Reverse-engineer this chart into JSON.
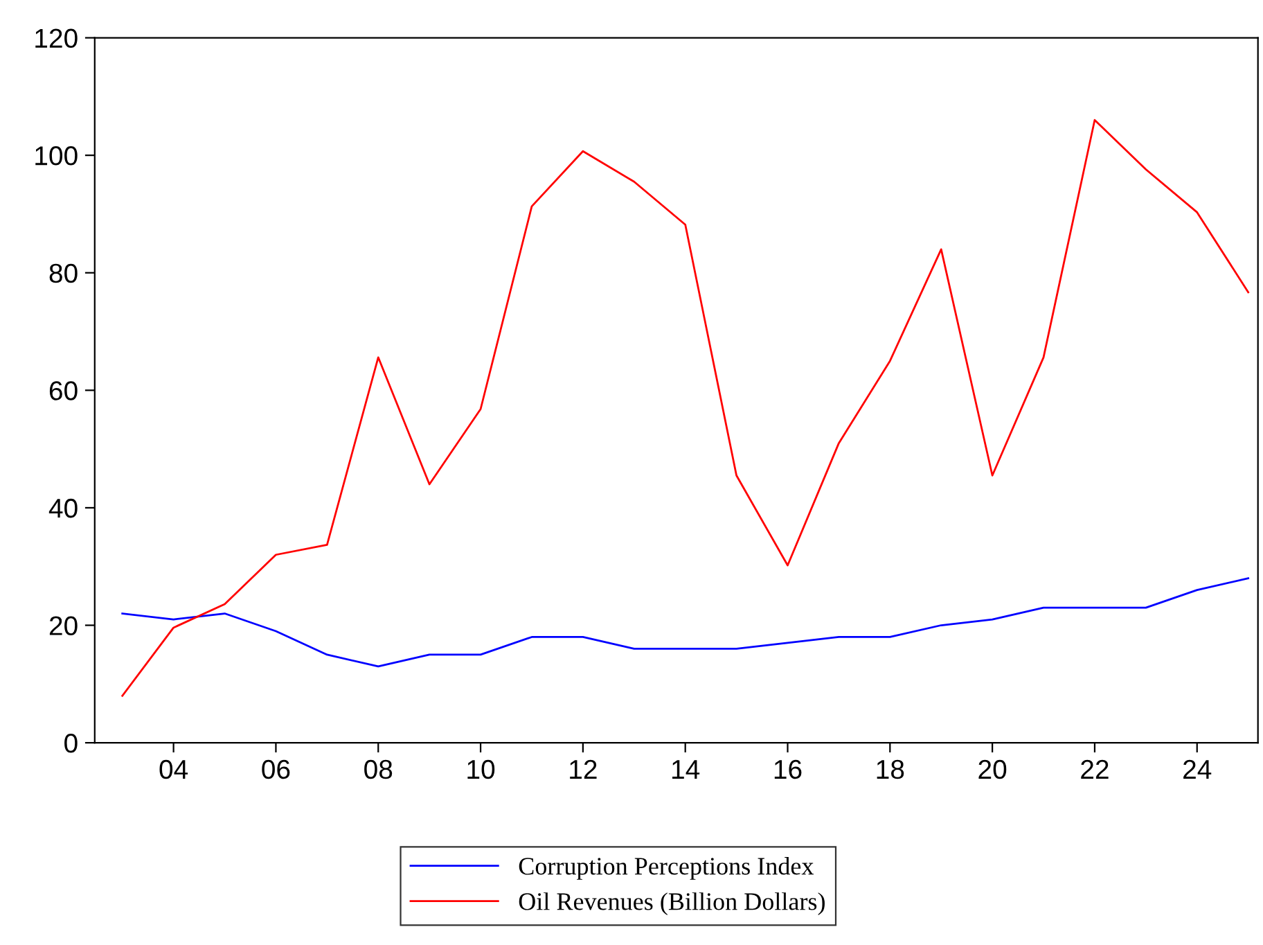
{
  "chart_data": {
    "type": "line",
    "x": [
      2003,
      2004,
      2005,
      2006,
      2007,
      2008,
      2009,
      2010,
      2011,
      2012,
      2013,
      2014,
      2015,
      2016,
      2017,
      2018,
      2019,
      2020,
      2021,
      2022,
      2023,
      2024,
      2025
    ],
    "series": [
      {
        "name": "Corruption Perceptions Index",
        "color": "#0000ff",
        "values": [
          22,
          21,
          22,
          19,
          15,
          13,
          15,
          15,
          18,
          18,
          16,
          16,
          16,
          17,
          18,
          18,
          20,
          21,
          23,
          23,
          23,
          26,
          28
        ]
      },
      {
        "name": "Oil Revenues (Billion Dollars)",
        "color": "#ff0000",
        "values": [
          8,
          19.6,
          23.6,
          32,
          33.7,
          65.6,
          44,
          56.8,
          91.3,
          100.7,
          95.5,
          88.2,
          45.5,
          30.2,
          51,
          65,
          84,
          45.5,
          65.6,
          106,
          97.6,
          90.3,
          76.7
        ]
      }
    ],
    "xlim": [
      2002.46,
      2025.19
    ],
    "xticks": [
      {
        "value": 2004,
        "label": "04"
      },
      {
        "value": 2006,
        "label": "06"
      },
      {
        "value": 2008,
        "label": "08"
      },
      {
        "value": 2010,
        "label": "10"
      },
      {
        "value": 2012,
        "label": "12"
      },
      {
        "value": 2014,
        "label": "14"
      },
      {
        "value": 2016,
        "label": "16"
      },
      {
        "value": 2018,
        "label": "18"
      },
      {
        "value": 2020,
        "label": "20"
      },
      {
        "value": 2022,
        "label": "22"
      },
      {
        "value": 2024,
        "label": "24"
      }
    ],
    "ylim": [
      0,
      120
    ],
    "yticks": [
      0,
      20,
      40,
      60,
      80,
      100,
      120
    ],
    "grid": false,
    "legend": "bottom",
    "line_style": "solid",
    "marker": "none"
  }
}
